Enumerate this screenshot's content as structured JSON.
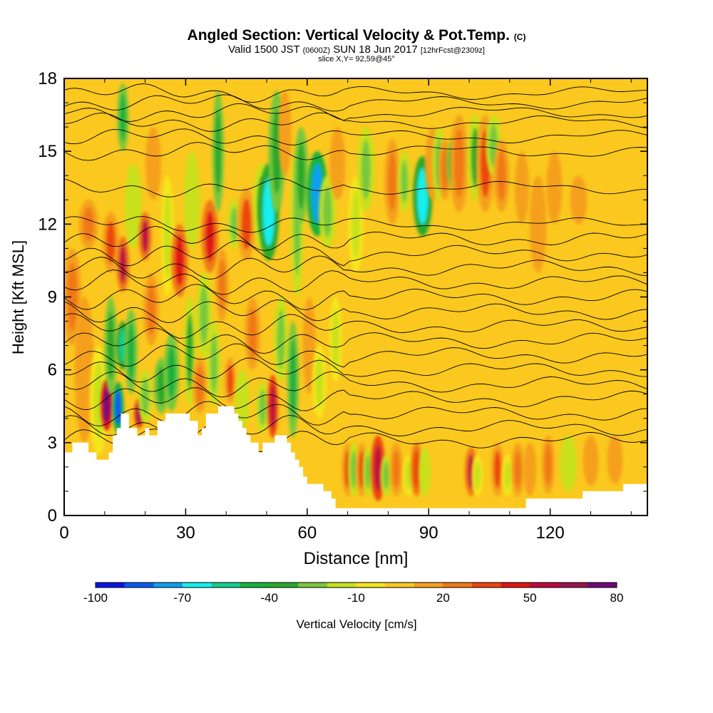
{
  "header": {
    "title_main": "Angled Section: Vertical Velocity & Pot.Temp.",
    "title_mark": "(C)",
    "valid_a": "Valid 1500 JST",
    "valid_b": "(0600Z)",
    "valid_c": "SUN 18 Jun 2017",
    "valid_d": "[12hrFcst@2309z]",
    "slice": "slice X,Y= 92,59@45°"
  },
  "chart_data": {
    "type": "heatmap",
    "xlabel": "Distance [nm]",
    "ylabel": "Height [Kft MSL]",
    "xlim": [
      0,
      144
    ],
    "ylim": [
      0,
      18
    ],
    "xticks": [
      0,
      30,
      60,
      90,
      120
    ],
    "yticks": [
      0,
      3,
      6,
      9,
      12,
      15,
      18
    ],
    "colorbar": {
      "label": "Vertical Velocity [cm/s]",
      "tick_labels": [
        "-100",
        "-70",
        "-40",
        "-10",
        "20",
        "50",
        "80"
      ],
      "tick_values": [
        -100,
        -70,
        -40,
        -10,
        20,
        50,
        80
      ],
      "levels": [
        -100,
        -90,
        -80,
        -70,
        -60,
        -50,
        -40,
        -30,
        -20,
        -10,
        0,
        10,
        20,
        30,
        40,
        50,
        60,
        70,
        80
      ],
      "colors": [
        "#0a14e6",
        "#0a5aee",
        "#0aa0f0",
        "#14f0f0",
        "#10d090",
        "#14b23c",
        "#2aa82a",
        "#78c83c",
        "#c8e11e",
        "#f5e61e",
        "#fac81e",
        "#f5a01e",
        "#f07814",
        "#eb460f",
        "#e11414",
        "#be0a3c",
        "#961450",
        "#6e0a78"
      ]
    },
    "terrain_kft": [
      [
        0,
        2.6
      ],
      [
        2,
        2.6
      ],
      [
        2,
        3.0
      ],
      [
        6,
        3.0
      ],
      [
        6,
        2.6
      ],
      [
        8,
        2.6
      ],
      [
        8,
        2.3
      ],
      [
        11,
        2.3
      ],
      [
        11,
        2.6
      ],
      [
        12,
        2.6
      ],
      [
        12,
        3.3
      ],
      [
        13,
        3.3
      ],
      [
        13,
        3.6
      ],
      [
        14,
        3.6
      ],
      [
        14,
        4.2
      ],
      [
        16,
        4.2
      ],
      [
        16,
        3.6
      ],
      [
        18,
        3.6
      ],
      [
        18,
        3.3
      ],
      [
        20,
        3.3
      ],
      [
        20,
        3.6
      ],
      [
        21,
        3.6
      ],
      [
        21,
        3.3
      ],
      [
        23,
        3.3
      ],
      [
        23,
        3.9
      ],
      [
        25,
        3.9
      ],
      [
        25,
        4.2
      ],
      [
        31,
        4.2
      ],
      [
        31,
        3.9
      ],
      [
        33,
        3.9
      ],
      [
        33,
        3.3
      ],
      [
        34,
        3.3
      ],
      [
        34,
        3.6
      ],
      [
        35,
        3.6
      ],
      [
        35,
        4.2
      ],
      [
        38,
        4.2
      ],
      [
        38,
        4.5
      ],
      [
        42,
        4.5
      ],
      [
        42,
        4.2
      ],
      [
        43,
        4.2
      ],
      [
        43,
        3.9
      ],
      [
        44,
        3.9
      ],
      [
        44,
        3.6
      ],
      [
        45,
        3.6
      ],
      [
        45,
        3.3
      ],
      [
        46,
        3.3
      ],
      [
        46,
        3.0
      ],
      [
        48,
        3.0
      ],
      [
        48,
        2.6
      ],
      [
        49,
        2.6
      ],
      [
        49,
        3.0
      ],
      [
        52,
        3.0
      ],
      [
        52,
        3.3
      ],
      [
        55,
        3.3
      ],
      [
        55,
        3.0
      ],
      [
        56,
        3.0
      ],
      [
        56,
        2.6
      ],
      [
        57,
        2.6
      ],
      [
        57,
        2.3
      ],
      [
        58,
        2.3
      ],
      [
        58,
        2.0
      ],
      [
        59,
        2.0
      ],
      [
        59,
        1.6
      ],
      [
        60,
        1.6
      ],
      [
        60,
        1.3
      ],
      [
        64,
        1.3
      ],
      [
        64,
        1.0
      ],
      [
        66,
        1.0
      ],
      [
        66,
        0.7
      ],
      [
        67,
        0.7
      ],
      [
        67,
        0.3
      ],
      [
        95,
        0.3
      ],
      [
        95,
        0.3
      ],
      [
        114,
        0.3
      ],
      [
        114,
        0.7
      ],
      [
        121,
        0.7
      ],
      [
        121,
        0.7
      ],
      [
        128,
        0.7
      ],
      [
        128,
        1.0
      ],
      [
        134,
        1.0
      ],
      [
        134,
        1.0
      ],
      [
        138,
        1.0
      ],
      [
        138,
        1.3
      ],
      [
        144,
        1.3
      ]
    ],
    "plumes": [
      {
        "x": 2,
        "z0": 7,
        "z1": 11,
        "w": 1.4,
        "v": 22
      },
      {
        "x": 5,
        "z0": 3,
        "z1": 9,
        "w": 1.5,
        "v": 12
      },
      {
        "x": 6,
        "z0": 11,
        "z1": 13,
        "w": 1.5,
        "v": 20
      },
      {
        "x": 8.5,
        "z0": 2.5,
        "z1": 7,
        "w": 1.4,
        "v": -15
      },
      {
        "x": 10.5,
        "z0": 3.5,
        "z1": 5.6,
        "w": 0.9,
        "v": 75
      },
      {
        "x": 11.5,
        "z0": 5,
        "z1": 9,
        "w": 1.0,
        "v": -40
      },
      {
        "x": 11.5,
        "z0": 10,
        "z1": 12.5,
        "w": 1.3,
        "v": 30
      },
      {
        "x": 13.3,
        "z0": 3.4,
        "z1": 5.5,
        "w": 0.9,
        "v": -90
      },
      {
        "x": 14.5,
        "z0": 6,
        "z1": 8,
        "w": 1.0,
        "v": -55
      },
      {
        "x": 14.5,
        "z0": 9.2,
        "z1": 11.5,
        "w": 1.0,
        "v": 50
      },
      {
        "x": 14.5,
        "z0": 15,
        "z1": 17.8,
        "w": 0.9,
        "v": -45
      },
      {
        "x": 16.5,
        "z0": 5,
        "z1": 8.5,
        "w": 1.0,
        "v": -48
      },
      {
        "x": 17,
        "z0": 11,
        "z1": 14.5,
        "w": 1.3,
        "v": -20
      },
      {
        "x": 18.5,
        "z0": 3.6,
        "z1": 4.8,
        "w": 0.8,
        "v": 60
      },
      {
        "x": 20,
        "z0": 3.8,
        "z1": 6,
        "w": 1.1,
        "v": -30
      },
      {
        "x": 20,
        "z0": 10.5,
        "z1": 12.5,
        "w": 1.0,
        "v": 52
      },
      {
        "x": 21.5,
        "z0": 7,
        "z1": 10,
        "w": 1.2,
        "v": 25
      },
      {
        "x": 22,
        "z0": 13,
        "z1": 16,
        "w": 1.2,
        "v": 18
      },
      {
        "x": 24,
        "z0": 4.2,
        "z1": 6.5,
        "w": 1.2,
        "v": -38
      },
      {
        "x": 25.5,
        "z0": 9,
        "z1": 14,
        "w": 1.0,
        "v": -18
      },
      {
        "x": 26.5,
        "z0": 4.3,
        "z1": 7.5,
        "w": 1.2,
        "v": -45
      },
      {
        "x": 28.5,
        "z0": 9,
        "z1": 12,
        "w": 1.3,
        "v": 40
      },
      {
        "x": 31,
        "z0": 4.5,
        "z1": 9,
        "w": 1.0,
        "v": -35
      },
      {
        "x": 31.5,
        "z0": 11,
        "z1": 15,
        "w": 1.2,
        "v": -20
      },
      {
        "x": 33.5,
        "z0": 4.2,
        "z1": 6.5,
        "w": 1.1,
        "v": 28
      },
      {
        "x": 34.5,
        "z0": 6.5,
        "z1": 10,
        "w": 1.2,
        "v": -25
      },
      {
        "x": 36,
        "z0": 10,
        "z1": 13,
        "w": 1.3,
        "v": 45
      },
      {
        "x": 37,
        "z0": 4.5,
        "z1": 8,
        "w": 1.0,
        "v": -30
      },
      {
        "x": 38,
        "z0": 12.5,
        "z1": 17.5,
        "w": 0.9,
        "v": -40
      },
      {
        "x": 39,
        "z0": 8,
        "z1": 11,
        "w": 1.0,
        "v": 20
      },
      {
        "x": 41,
        "z0": 4.6,
        "z1": 6.5,
        "w": 0.9,
        "v": 30
      },
      {
        "x": 42,
        "z0": 11,
        "z1": 13,
        "w": 1.1,
        "v": -22
      },
      {
        "x": 44,
        "z0": 3.6,
        "z1": 6,
        "w": 1.1,
        "v": -20
      },
      {
        "x": 45,
        "z0": 10.5,
        "z1": 13.5,
        "w": 1.4,
        "v": 35
      },
      {
        "x": 46.5,
        "z0": 6,
        "z1": 9,
        "w": 1.2,
        "v": 22
      },
      {
        "x": 49,
        "z0": 11,
        "z1": 14.5,
        "w": 1.5,
        "v": -32
      },
      {
        "x": 49,
        "z0": 3.4,
        "z1": 5.5,
        "w": 1.0,
        "v": -28
      },
      {
        "x": 50.5,
        "z0": 10.5,
        "z1": 14.5,
        "w": 1.6,
        "v": -68
      },
      {
        "x": 51.5,
        "z0": 3.2,
        "z1": 5.8,
        "w": 0.8,
        "v": 55
      },
      {
        "x": 52.5,
        "z0": 12.5,
        "z1": 17.5,
        "w": 1.3,
        "v": -38
      },
      {
        "x": 53.5,
        "z0": 5.5,
        "z1": 9,
        "w": 1.1,
        "v": -22
      },
      {
        "x": 54.5,
        "z0": 14,
        "z1": 17.5,
        "w": 1.0,
        "v": 15
      },
      {
        "x": 56.5,
        "z0": 3.2,
        "z1": 8,
        "w": 0.9,
        "v": -42
      },
      {
        "x": 57.5,
        "z0": 9,
        "z1": 15,
        "w": 1.0,
        "v": -30
      },
      {
        "x": 58.5,
        "z0": 12,
        "z1": 16,
        "w": 1.1,
        "v": -38
      },
      {
        "x": 60.5,
        "z0": 5,
        "z1": 9,
        "w": 1.0,
        "v": 18
      },
      {
        "x": 62.5,
        "z0": 11.5,
        "z1": 15,
        "w": 1.6,
        "v": -75
      },
      {
        "x": 63,
        "z0": 4,
        "z1": 7,
        "w": 1.1,
        "v": -15
      },
      {
        "x": 65,
        "z0": 11,
        "z1": 14,
        "w": 1.3,
        "v": -30
      },
      {
        "x": 67,
        "z0": 5.5,
        "z1": 9,
        "w": 1.0,
        "v": -12
      },
      {
        "x": 67.5,
        "z0": 13,
        "z1": 16,
        "w": 1.2,
        "v": 18
      },
      {
        "x": 70,
        "z0": 0.8,
        "z1": 3,
        "w": 0.9,
        "v": 30
      },
      {
        "x": 71.5,
        "z0": 0.8,
        "z1": 3,
        "w": 0.9,
        "v": -22
      },
      {
        "x": 72,
        "z0": 10,
        "z1": 14,
        "w": 1.2,
        "v": -15
      },
      {
        "x": 73.5,
        "z0": 0.8,
        "z1": 3,
        "w": 0.9,
        "v": 32
      },
      {
        "x": 74.5,
        "z0": 12.5,
        "z1": 16,
        "w": 1.3,
        "v": -28
      },
      {
        "x": 75,
        "z0": 0.8,
        "z1": 2.8,
        "w": 0.8,
        "v": -30
      },
      {
        "x": 77.5,
        "z0": 0.6,
        "z1": 3.3,
        "w": 1.1,
        "v": 55
      },
      {
        "x": 79.5,
        "z0": 0.8,
        "z1": 2.5,
        "w": 0.9,
        "v": -22
      },
      {
        "x": 81,
        "z0": 12,
        "z1": 15.5,
        "w": 1.2,
        "v": 20
      },
      {
        "x": 82,
        "z0": 0.8,
        "z1": 3,
        "w": 1.0,
        "v": 25
      },
      {
        "x": 84,
        "z0": 12.5,
        "z1": 15,
        "w": 1.0,
        "v": -28
      },
      {
        "x": 85,
        "z0": 0.8,
        "z1": 2.5,
        "w": 0.9,
        "v": -18
      },
      {
        "x": 87,
        "z0": 0.8,
        "z1": 3,
        "w": 0.9,
        "v": 38
      },
      {
        "x": 88.5,
        "z0": 11.5,
        "z1": 14.8,
        "w": 1.5,
        "v": -70
      },
      {
        "x": 89,
        "z0": 0.8,
        "z1": 2.8,
        "w": 0.9,
        "v": -20
      },
      {
        "x": 91,
        "z0": 13,
        "z1": 16,
        "w": 1.2,
        "v": 18
      },
      {
        "x": 92.5,
        "z0": 13,
        "z1": 16,
        "w": 1.0,
        "v": -22
      },
      {
        "x": 94,
        "z0": 13,
        "z1": 15.5,
        "w": 1.0,
        "v": 22
      },
      {
        "x": 96,
        "z0": 13.5,
        "z1": 15.5,
        "w": 1.0,
        "v": -40
      },
      {
        "x": 97.5,
        "z0": 12.5,
        "z1": 16.5,
        "w": 1.4,
        "v": 28
      },
      {
        "x": 100.5,
        "z0": 0.8,
        "z1": 2.8,
        "w": 1.0,
        "v": 50
      },
      {
        "x": 101.5,
        "z0": 13,
        "z1": 16.5,
        "w": 1.2,
        "v": -32
      },
      {
        "x": 102,
        "z0": 0.8,
        "z1": 2.5,
        "w": 0.9,
        "v": -18
      },
      {
        "x": 104,
        "z0": 12.5,
        "z1": 16.5,
        "w": 1.4,
        "v": 35
      },
      {
        "x": 106,
        "z0": 14,
        "z1": 16.5,
        "w": 1.2,
        "v": -22
      },
      {
        "x": 107,
        "z0": 0.8,
        "z1": 3,
        "w": 1.0,
        "v": 32
      },
      {
        "x": 108,
        "z0": 12.5,
        "z1": 15.5,
        "w": 1.2,
        "v": 22
      },
      {
        "x": 109.5,
        "z0": 0.8,
        "z1": 2.5,
        "w": 0.9,
        "v": -18
      },
      {
        "x": 112,
        "z0": 0.8,
        "z1": 3,
        "w": 1.0,
        "v": 22
      },
      {
        "x": 113,
        "z0": 12,
        "z1": 15,
        "w": 1.1,
        "v": 18
      },
      {
        "x": 115,
        "z0": 0.8,
        "z1": 3,
        "w": 1.0,
        "v": 18
      },
      {
        "x": 117,
        "z0": 10,
        "z1": 14,
        "w": 1.3,
        "v": 15
      },
      {
        "x": 119.5,
        "z0": 0.9,
        "z1": 3.3,
        "w": 1.0,
        "v": 25
      },
      {
        "x": 121,
        "z0": 12,
        "z1": 15,
        "w": 1.2,
        "v": 15
      },
      {
        "x": 124.5,
        "z0": 1.0,
        "z1": 3.3,
        "w": 1.3,
        "v": -20
      },
      {
        "x": 127,
        "z0": 12,
        "z1": 14,
        "w": 1.3,
        "v": 14
      },
      {
        "x": 130,
        "z0": 1.2,
        "z1": 3.3,
        "w": 1.2,
        "v": 18
      },
      {
        "x": 136,
        "z0": 1.3,
        "z1": 3.3,
        "w": 1.2,
        "v": 12
      }
    ],
    "theta_contour_kft": [
      3.1,
      3.6,
      4.2,
      4.8,
      5.4,
      6.0,
      6.6,
      7.2,
      7.8,
      8.4,
      9.0,
      9.6,
      10.2,
      10.8,
      11.4,
      12.0,
      13.5,
      15.0,
      15.6,
      16.2,
      16.6,
      17.0,
      17.4
    ]
  }
}
